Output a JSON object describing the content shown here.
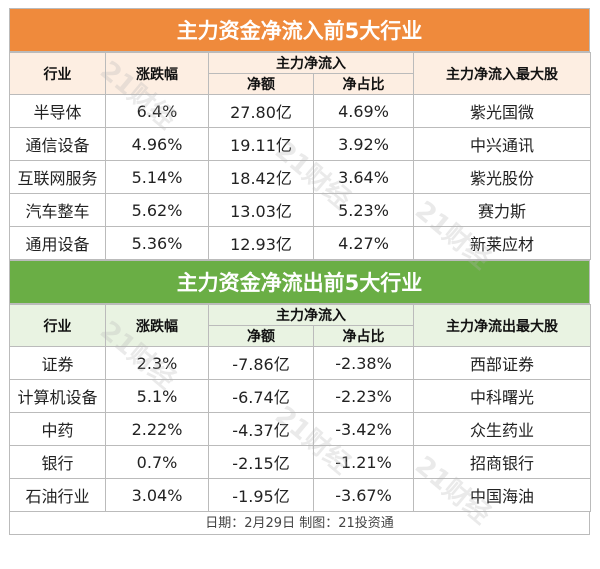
{
  "colors": {
    "inflow_banner": "#ef8a3c",
    "outflow_banner": "#6aae45",
    "inflow_header_bg": "#fdeee2",
    "outflow_header_bg": "#e9f3e2"
  },
  "inflow": {
    "title": "主力资金净流入前5大行业",
    "headers": {
      "industry": "行业",
      "change": "涨跌幅",
      "group": "主力净流入",
      "amount": "净额",
      "ratio": "净占比",
      "top_stock": "主力净流入最大股"
    },
    "rows": [
      {
        "industry": "半导体",
        "change": "6.4%",
        "amount": "27.80亿",
        "ratio": "4.69%",
        "top_stock": "紫光国微"
      },
      {
        "industry": "通信设备",
        "change": "4.96%",
        "amount": "19.11亿",
        "ratio": "3.92%",
        "top_stock": "中兴通讯"
      },
      {
        "industry": "互联网服务",
        "change": "5.14%",
        "amount": "18.42亿",
        "ratio": "3.64%",
        "top_stock": "紫光股份"
      },
      {
        "industry": "汽车整车",
        "change": "5.62%",
        "amount": "13.03亿",
        "ratio": "5.23%",
        "top_stock": "赛力斯"
      },
      {
        "industry": "通用设备",
        "change": "5.36%",
        "amount": "12.93亿",
        "ratio": "4.27%",
        "top_stock": "新莱应材"
      }
    ]
  },
  "outflow": {
    "title": "主力资金净流出前5大行业",
    "headers": {
      "industry": "行业",
      "change": "涨跌幅",
      "group": "主力净流入",
      "amount": "净额",
      "ratio": "净占比",
      "top_stock": "主力净流出最大股"
    },
    "rows": [
      {
        "industry": "证券",
        "change": "2.3%",
        "amount": "-7.86亿",
        "ratio": "-2.38%",
        "top_stock": "西部证券"
      },
      {
        "industry": "计算机设备",
        "change": "5.1%",
        "amount": "-6.74亿",
        "ratio": "-2.23%",
        "top_stock": "中科曙光"
      },
      {
        "industry": "中药",
        "change": "2.22%",
        "amount": "-4.37亿",
        "ratio": "-3.42%",
        "top_stock": "众生药业"
      },
      {
        "industry": "银行",
        "change": "0.7%",
        "amount": "-2.15亿",
        "ratio": "-1.21%",
        "top_stock": "招商银行"
      },
      {
        "industry": "石油行业",
        "change": "3.04%",
        "amount": "-1.95亿",
        "ratio": "-3.67%",
        "top_stock": "中国海油"
      }
    ]
  },
  "footer": "日期：2月29日  制图：21投资通",
  "watermark": "21财经"
}
